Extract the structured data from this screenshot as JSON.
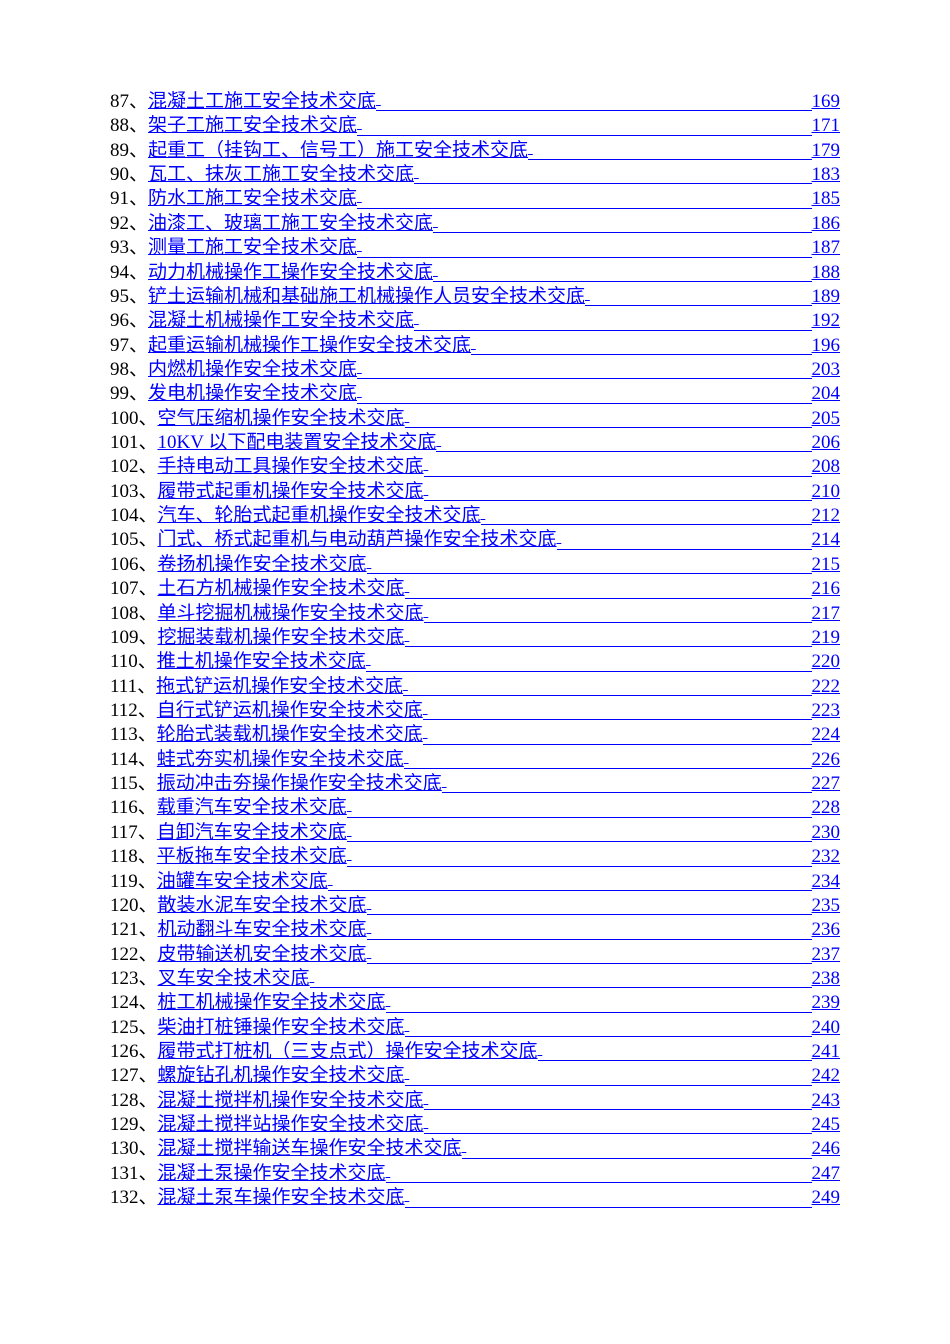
{
  "toc": [
    {
      "num": "87、",
      "title": "混凝土工施工安全技术交底",
      "page": "169"
    },
    {
      "num": "88、",
      "title": "架子工施工安全技术交底",
      "page": "171"
    },
    {
      "num": "89、",
      "title": "起重工（挂钩工、信号工）施工安全技术交底",
      "page": "179"
    },
    {
      "num": "90、",
      "title": "瓦工、抹灰工施工安全技术交底",
      "page": "183"
    },
    {
      "num": "91、",
      "title": "防水工施工安全技术交底",
      "page": "185"
    },
    {
      "num": "92、",
      "title": "油漆工、玻璃工施工安全技术交底",
      "page": "186"
    },
    {
      "num": "93、",
      "title": "测量工施工安全技术交底",
      "page": "187"
    },
    {
      "num": "94、",
      "title": "动力机械操作工操作安全技术交底",
      "page": "188"
    },
    {
      "num": "95、",
      "title": "铲土运输机械和基础施工机械操作人员安全技术交底",
      "page": "189"
    },
    {
      "num": "96、",
      "title": "混凝土机械操作工安全技术交底",
      "page": "192"
    },
    {
      "num": "97、",
      "title": "起重运输机械操作工操作安全技术交底",
      "page": "196"
    },
    {
      "num": "98、",
      "title": "内燃机操作安全技术交底",
      "page": "203"
    },
    {
      "num": "99、",
      "title": "发电机操作安全技术交底",
      "page": "204"
    },
    {
      "num": "100、",
      "title": "空气压缩机操作安全技术交底",
      "page": "205"
    },
    {
      "num": "101、",
      "title": "10KV 以下配电装置安全技术交底",
      "page": "206"
    },
    {
      "num": "102、",
      "title": "手持电动工具操作安全技术交底",
      "page": "208"
    },
    {
      "num": "103、",
      "title": "履带式起重机操作安全技术交底",
      "page": "210"
    },
    {
      "num": "104、",
      "title": "汽车、轮胎式起重机操作安全技术交底",
      "page": "212"
    },
    {
      "num": "105、",
      "title": "门式、桥式起重机与电动葫芦操作安全技术交底",
      "page": "214"
    },
    {
      "num": "106、",
      "title": "卷扬机操作安全技术交底",
      "page": "215"
    },
    {
      "num": "107、",
      "title": "土石方机械操作安全技术交底",
      "page": "216"
    },
    {
      "num": "108、",
      "title": "单斗挖掘机械操作安全技术交底",
      "page": "217"
    },
    {
      "num": "109、",
      "title": "挖掘装载机操作安全技术交底",
      "page": "219"
    },
    {
      "num": "110、",
      "title": "推土机操作安全技术交底",
      "page": "220"
    },
    {
      "num": "111、",
      "title": "拖式铲运机操作安全技术交底",
      "page": "222"
    },
    {
      "num": "112、",
      "title": "自行式铲运机操作安全技术交底",
      "page": "223"
    },
    {
      "num": "113、",
      "title": "轮胎式装载机操作安全技术交底",
      "page": "224"
    },
    {
      "num": "114、",
      "title": "蛙式夯实机操作安全技术交底",
      "page": "226"
    },
    {
      "num": "115、",
      "title": "振动冲击夯操作操作安全技术交底",
      "page": "227"
    },
    {
      "num": "116、",
      "title": "载重汽车安全技术交底",
      "page": "228"
    },
    {
      "num": "117、",
      "title": "自卸汽车安全技术交底",
      "page": "230"
    },
    {
      "num": "118、",
      "title": "平板拖车安全技术交底",
      "page": "232"
    },
    {
      "num": "119、",
      "title": "油罐车安全技术交底",
      "page": "234"
    },
    {
      "num": "120、",
      "title": "散装水泥车安全技术交底",
      "page": "235"
    },
    {
      "num": "121、",
      "title": "机动翻斗车安全技术交底",
      "page": "236"
    },
    {
      "num": "122、",
      "title": "皮带输送机安全技术交底",
      "page": "237"
    },
    {
      "num": "123、",
      "title": "叉车安全技术交底",
      "page": "238"
    },
    {
      "num": "124、",
      "title": "桩工机械操作安全技术交底",
      "page": "239"
    },
    {
      "num": "125、",
      "title": "柴油打桩锤操作安全技术交底",
      "page": "240"
    },
    {
      "num": "126、",
      "title": "履带式打桩机（三支点式）操作安全技术交底",
      "page": "241"
    },
    {
      "num": "127、",
      "title": "螺旋钻孔机操作安全技术交底",
      "page": "242"
    },
    {
      "num": "128、",
      "title": "混凝土搅拌机操作安全技术交底",
      "page": "243"
    },
    {
      "num": "129、",
      "title": "混凝土搅拌站操作安全技术交底",
      "page": "245"
    },
    {
      "num": "130、",
      "title": "混凝土搅拌输送车操作安全技术交底",
      "page": "246"
    },
    {
      "num": "131、",
      "title": "混凝土泵操作安全技术交底",
      "page": "247"
    },
    {
      "num": "132、",
      "title": "混凝土泵车操作安全技术交底",
      "page": "249"
    }
  ]
}
